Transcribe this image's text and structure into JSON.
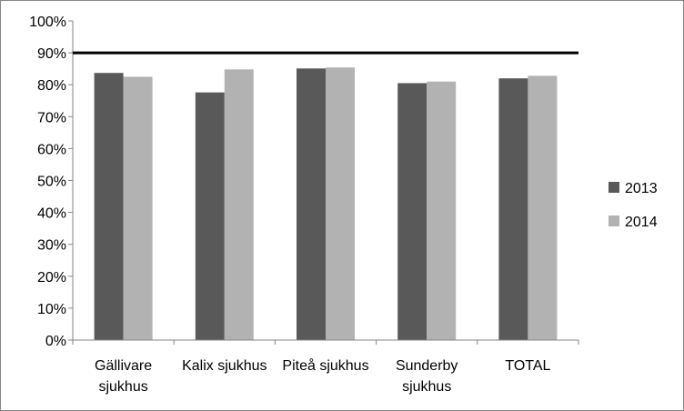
{
  "chart_data": {
    "type": "bar",
    "categories": [
      [
        "Gällivare",
        "sjukhus"
      ],
      [
        "Kalix sjukhus"
      ],
      [
        "Piteå sjukhus"
      ],
      [
        "Sunderby",
        "sjukhus"
      ],
      [
        "TOTAL"
      ]
    ],
    "series": [
      {
        "name": "2013",
        "color": "#595959",
        "values": [
          83.7,
          77.6,
          85.1,
          80.5,
          82.0
        ]
      },
      {
        "name": "2014",
        "color": "#b2b2b2",
        "values": [
          82.5,
          84.8,
          85.4,
          81.0,
          82.8
        ]
      }
    ],
    "y_ticks": [
      "0%",
      "10%",
      "20%",
      "30%",
      "40%",
      "50%",
      "60%",
      "70%",
      "80%",
      "90%",
      "100%"
    ],
    "ylim": [
      0,
      100
    ],
    "target_line": 90,
    "target_line_color": "#000000",
    "legend_position": "right",
    "grid": false
  }
}
